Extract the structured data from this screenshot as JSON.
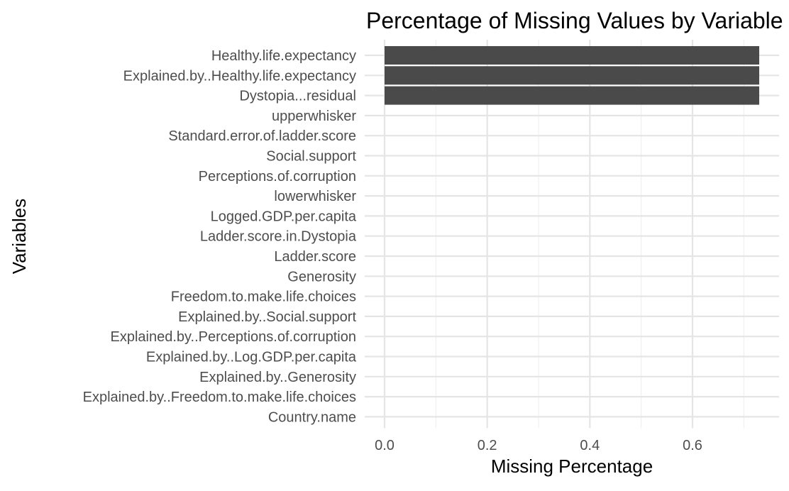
{
  "chart_data": {
    "type": "bar",
    "orientation": "horizontal",
    "title": "Percentage of Missing Values by Variable",
    "xlabel": "Missing Percentage",
    "ylabel": "Variables",
    "xlim": [
      0,
      0.73
    ],
    "x_ticks": [
      0.0,
      0.2,
      0.4,
      0.6
    ],
    "x_tick_labels": [
      "0.0",
      "0.2",
      "0.4",
      "0.6"
    ],
    "grid": true,
    "legend": "none",
    "bar_color": "#4a4a4a",
    "categories": [
      "Healthy.life.expectancy",
      "Explained.by..Healthy.life.expectancy",
      "Dystopia...residual",
      "upperwhisker",
      "Standard.error.of.ladder.score",
      "Social.support",
      "Perceptions.of.corruption",
      "lowerwhisker",
      "Logged.GDP.per.capita",
      "Ladder.score.in.Dystopia",
      "Ladder.score",
      "Generosity",
      "Freedom.to.make.life.choices",
      "Explained.by..Social.support",
      "Explained.by..Perceptions.of.corruption",
      "Explained.by..Log.GDP.per.capita",
      "Explained.by..Generosity",
      "Explained.by..Freedom.to.make.life.choices",
      "Country.name"
    ],
    "values": [
      0.73,
      0.73,
      0.73,
      0,
      0,
      0,
      0,
      0,
      0,
      0,
      0,
      0,
      0,
      0,
      0,
      0,
      0,
      0,
      0
    ]
  }
}
